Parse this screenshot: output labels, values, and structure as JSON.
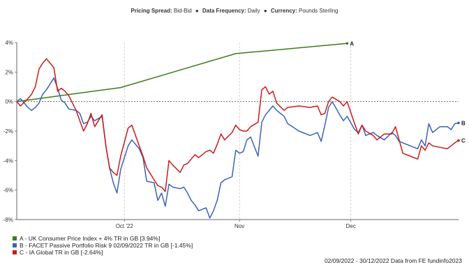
{
  "header": {
    "spread_label": "Pricing Spread:",
    "spread_value": "Bid-Bid",
    "frequency_label": "Data Frequency:",
    "frequency_value": "Daily",
    "currency_label": "Currency:",
    "currency_value": "Pounds Sterling",
    "separator": "●"
  },
  "footer": {
    "source": "02/09/2022 - 30/12/2022 Data from FE fundinfo2023"
  },
  "chart_data": {
    "type": "line",
    "x_range": [
      "2022-09-02",
      "2022-12-30"
    ],
    "x_ticks": [
      {
        "date": "2022-10-01",
        "label": "Oct '22"
      },
      {
        "date": "2022-11-01",
        "label": "Nov"
      },
      {
        "date": "2022-12-01",
        "label": "Dec"
      }
    ],
    "ylim": [
      -8,
      4
    ],
    "y_ticks": [
      4,
      2,
      0,
      -2,
      -4,
      -6,
      -8
    ],
    "y_tick_labels": [
      "4%",
      "2%",
      "0%",
      "-2%",
      "-4%",
      "-6%",
      "-8%"
    ],
    "zero_line": true,
    "grid": "vertical dashed at month ticks",
    "legend_position": "bottom-left",
    "series": [
      {
        "id": "A",
        "name": "A - UK Consumer Price Index + 4% TR in GB [3.94%]",
        "end_label": "A",
        "color": "#3b7a1c",
        "points": [
          [
            "2022-09-02",
            0.0
          ],
          [
            "2022-09-30",
            0.95
          ],
          [
            "2022-10-31",
            3.25
          ],
          [
            "2022-11-30",
            3.94
          ]
        ]
      },
      {
        "id": "B",
        "name": "B - FACET Passive Portfolio Risk 9 02/09/2022 TR in GB [-1.45%]",
        "end_label": "B",
        "color": "#3a63b8",
        "points": [
          [
            "2022-09-02",
            0.0
          ],
          [
            "2022-09-03",
            0.2
          ],
          [
            "2022-09-05",
            -0.4
          ],
          [
            "2022-09-06",
            -0.6
          ],
          [
            "2022-09-07",
            -0.4
          ],
          [
            "2022-09-08",
            -0.1
          ],
          [
            "2022-09-09",
            0.5
          ],
          [
            "2022-09-10",
            0.8
          ],
          [
            "2022-09-12",
            1.6
          ],
          [
            "2022-09-13",
            0.9
          ],
          [
            "2022-09-14",
            0.1
          ],
          [
            "2022-09-15",
            -0.1
          ],
          [
            "2022-09-16",
            -0.5
          ],
          [
            "2022-09-18",
            -0.6
          ],
          [
            "2022-09-19",
            -0.8
          ],
          [
            "2022-09-20",
            -1.5
          ],
          [
            "2022-09-21",
            -1.4
          ],
          [
            "2022-09-22",
            -1.0
          ],
          [
            "2022-09-23",
            -1.3
          ],
          [
            "2022-09-25",
            -1.0
          ],
          [
            "2022-09-26",
            -3.0
          ],
          [
            "2022-09-27",
            -4.5
          ],
          [
            "2022-09-28",
            -5.5
          ],
          [
            "2022-09-29",
            -6.2
          ],
          [
            "2022-09-30",
            -4.6
          ],
          [
            "2022-10-02",
            -3.0
          ],
          [
            "2022-10-03",
            -2.6
          ],
          [
            "2022-10-05",
            -3.2
          ],
          [
            "2022-10-06",
            -3.8
          ],
          [
            "2022-10-07",
            -5.4
          ],
          [
            "2022-10-09",
            -5.5
          ],
          [
            "2022-10-10",
            -6.7
          ],
          [
            "2022-10-11",
            -6.2
          ],
          [
            "2022-10-12",
            -7.1
          ],
          [
            "2022-10-13",
            -5.6
          ],
          [
            "2022-10-14",
            -5.8
          ],
          [
            "2022-10-16",
            -5.9
          ],
          [
            "2022-10-17",
            -5.8
          ],
          [
            "2022-10-18",
            -6.2
          ],
          [
            "2022-10-19",
            -6.7
          ],
          [
            "2022-10-20",
            -7.0
          ],
          [
            "2022-10-21",
            -7.4
          ],
          [
            "2022-10-23",
            -7.2
          ],
          [
            "2022-10-24",
            -7.9
          ],
          [
            "2022-10-25",
            -7.4
          ],
          [
            "2022-10-26",
            -6.7
          ],
          [
            "2022-10-27",
            -5.5
          ],
          [
            "2022-10-28",
            -5.3
          ],
          [
            "2022-10-30",
            -5.1
          ],
          [
            "2022-10-31",
            -3.3
          ],
          [
            "2022-11-01",
            -3.5
          ],
          [
            "2022-11-02",
            -3.4
          ],
          [
            "2022-11-03",
            -2.6
          ],
          [
            "2022-11-04",
            -2.4
          ],
          [
            "2022-11-06",
            -3.7
          ],
          [
            "2022-11-07",
            -1.4
          ],
          [
            "2022-11-08",
            -0.9
          ],
          [
            "2022-11-09",
            -0.6
          ],
          [
            "2022-11-10",
            -0.3
          ],
          [
            "2022-11-11",
            -0.6
          ],
          [
            "2022-11-13",
            -1.0
          ],
          [
            "2022-11-14",
            -1.5
          ],
          [
            "2022-11-17",
            -2.0
          ],
          [
            "2022-11-20",
            -2.3
          ],
          [
            "2022-11-22",
            -2.1
          ],
          [
            "2022-11-23",
            -2.7
          ],
          [
            "2022-11-24",
            -1.6
          ],
          [
            "2022-11-25",
            -0.4
          ],
          [
            "2022-11-26",
            0.0
          ],
          [
            "2022-11-28",
            -0.9
          ],
          [
            "2022-11-29",
            -1.3
          ],
          [
            "2022-11-30",
            -1.0
          ],
          [
            "2022-12-02",
            -1.9
          ],
          [
            "2022-12-03",
            -2.1
          ],
          [
            "2022-12-04",
            -1.6
          ],
          [
            "2022-12-05",
            -2.3
          ],
          [
            "2022-12-07",
            -2.1
          ],
          [
            "2022-12-08",
            -2.3
          ],
          [
            "2022-12-10",
            -2.6
          ],
          [
            "2022-12-12",
            -2.1
          ],
          [
            "2022-12-13",
            -2.3
          ],
          [
            "2022-12-14",
            -2.7
          ],
          [
            "2022-12-15",
            -2.8
          ],
          [
            "2022-12-17",
            -3.0
          ],
          [
            "2022-12-19",
            -3.2
          ],
          [
            "2022-12-20",
            -2.6
          ],
          [
            "2022-12-21",
            -3.0
          ],
          [
            "2022-12-22",
            -1.5
          ],
          [
            "2022-12-23",
            -2.1
          ],
          [
            "2022-12-25",
            -1.7
          ],
          [
            "2022-12-27",
            -1.7
          ],
          [
            "2022-12-28",
            -1.9
          ],
          [
            "2022-12-29",
            -1.5
          ],
          [
            "2022-12-30",
            -1.45
          ]
        ]
      },
      {
        "id": "C",
        "name": "C - IA Global TR in GB [-2.64%]",
        "end_label": "C",
        "color": "#cc1a1a",
        "points": [
          [
            "2022-09-02",
            0.0
          ],
          [
            "2022-09-03",
            -0.3
          ],
          [
            "2022-09-05",
            0.2
          ],
          [
            "2022-09-06",
            0.5
          ],
          [
            "2022-09-07",
            1.0
          ],
          [
            "2022-09-08",
            2.2
          ],
          [
            "2022-09-09",
            2.6
          ],
          [
            "2022-09-10",
            2.9
          ],
          [
            "2022-09-12",
            2.3
          ],
          [
            "2022-09-13",
            0.7
          ],
          [
            "2022-09-14",
            0.9
          ],
          [
            "2022-09-15",
            0.7
          ],
          [
            "2022-09-16",
            0.4
          ],
          [
            "2022-09-18",
            -0.6
          ],
          [
            "2022-09-19",
            -1.3
          ],
          [
            "2022-09-20",
            -2.0
          ],
          [
            "2022-09-21",
            -1.5
          ],
          [
            "2022-09-22",
            -0.8
          ],
          [
            "2022-09-23",
            -1.7
          ],
          [
            "2022-09-25",
            -0.9
          ],
          [
            "2022-09-26",
            -3.0
          ],
          [
            "2022-09-27",
            -4.5
          ],
          [
            "2022-09-28",
            -4.8
          ],
          [
            "2022-09-29",
            -5.0
          ],
          [
            "2022-09-30",
            -3.7
          ],
          [
            "2022-10-02",
            -1.8
          ],
          [
            "2022-10-03",
            -1.6
          ],
          [
            "2022-10-05",
            -3.0
          ],
          [
            "2022-10-06",
            -3.7
          ],
          [
            "2022-10-07",
            -4.5
          ],
          [
            "2022-10-09",
            -5.3
          ],
          [
            "2022-10-10",
            -5.7
          ],
          [
            "2022-10-11",
            -5.8
          ],
          [
            "2022-10-12",
            -6.1
          ],
          [
            "2022-10-13",
            -4.0
          ],
          [
            "2022-10-14",
            -4.3
          ],
          [
            "2022-10-16",
            -4.8
          ],
          [
            "2022-10-17",
            -4.3
          ],
          [
            "2022-10-18",
            -4.2
          ],
          [
            "2022-10-19",
            -3.9
          ],
          [
            "2022-10-20",
            -3.6
          ],
          [
            "2022-10-21",
            -3.8
          ],
          [
            "2022-10-23",
            -3.4
          ],
          [
            "2022-10-24",
            -3.3
          ],
          [
            "2022-10-25",
            -3.5
          ],
          [
            "2022-10-26",
            -2.9
          ],
          [
            "2022-10-27",
            -2.2
          ],
          [
            "2022-10-28",
            -2.6
          ],
          [
            "2022-10-30",
            -2.1
          ],
          [
            "2022-10-31",
            -1.6
          ],
          [
            "2022-11-01",
            -1.9
          ],
          [
            "2022-11-02",
            -2.0
          ],
          [
            "2022-11-03",
            -2.0
          ],
          [
            "2022-11-04",
            -1.7
          ],
          [
            "2022-11-06",
            -1.4
          ],
          [
            "2022-11-07",
            0.8
          ],
          [
            "2022-11-08",
            1.0
          ],
          [
            "2022-11-09",
            0.5
          ],
          [
            "2022-11-10",
            0.7
          ],
          [
            "2022-11-11",
            -0.1
          ],
          [
            "2022-11-13",
            -0.6
          ],
          [
            "2022-11-14",
            -0.4
          ],
          [
            "2022-11-17",
            -0.3
          ],
          [
            "2022-11-20",
            -0.4
          ],
          [
            "2022-11-22",
            -0.3
          ],
          [
            "2022-11-23",
            -0.9
          ],
          [
            "2022-11-24",
            -0.8
          ],
          [
            "2022-11-25",
            0.0
          ],
          [
            "2022-11-26",
            0.3
          ],
          [
            "2022-11-28",
            0.0
          ],
          [
            "2022-11-29",
            -0.3
          ],
          [
            "2022-11-30",
            0.0
          ],
          [
            "2022-12-02",
            -1.5
          ],
          [
            "2022-12-03",
            -2.2
          ],
          [
            "2022-12-04",
            -1.6
          ],
          [
            "2022-12-05",
            -2.0
          ],
          [
            "2022-12-07",
            -2.3
          ],
          [
            "2022-12-08",
            -2.6
          ],
          [
            "2022-12-10",
            -2.2
          ],
          [
            "2022-12-12",
            -2.2
          ],
          [
            "2022-12-13",
            -1.7
          ],
          [
            "2022-12-14",
            -2.6
          ],
          [
            "2022-12-15",
            -3.5
          ],
          [
            "2022-12-17",
            -3.7
          ],
          [
            "2022-12-19",
            -3.9
          ],
          [
            "2022-12-20",
            -3.0
          ],
          [
            "2022-12-21",
            -3.3
          ],
          [
            "2022-12-22",
            -2.8
          ],
          [
            "2022-12-23",
            -3.0
          ],
          [
            "2022-12-25",
            -3.1
          ],
          [
            "2022-12-27",
            -3.2
          ],
          [
            "2022-12-28",
            -3.0
          ],
          [
            "2022-12-29",
            -2.8
          ],
          [
            "2022-12-30",
            -2.64
          ]
        ]
      }
    ]
  }
}
